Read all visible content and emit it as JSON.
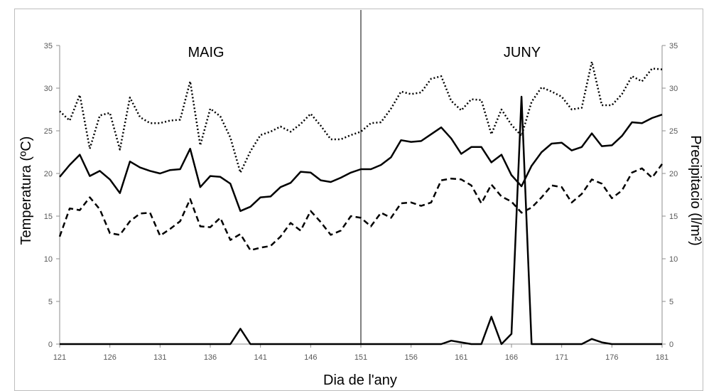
{
  "chart_data": {
    "type": "line",
    "xlabel": "Dia de l'any",
    "ylabel_left": "Temperatura (ºC)",
    "ylabel_right": "Precipitacio (l/m²)",
    "xlim": [
      121,
      181
    ],
    "ylim_left": [
      0,
      35
    ],
    "ylim_right": [
      0,
      35
    ],
    "xticks": [
      "121",
      "126",
      "131",
      "136",
      "141",
      "146",
      "151",
      "156",
      "161",
      "166",
      "171",
      "176",
      "181"
    ],
    "yticks_left": [
      "0",
      "5",
      "10",
      "15",
      "20",
      "25",
      "30",
      "35"
    ],
    "yticks_right": [
      "0",
      "5",
      "10",
      "15",
      "20",
      "25",
      "30",
      "35"
    ],
    "month_labels": [
      "MAIG",
      "JUNY"
    ],
    "divider_x": 151,
    "grid": false,
    "x": [
      121,
      122,
      123,
      124,
      125,
      126,
      127,
      128,
      129,
      130,
      131,
      132,
      133,
      134,
      135,
      136,
      137,
      138,
      139,
      140,
      141,
      142,
      143,
      144,
      145,
      146,
      147,
      148,
      149,
      150,
      151,
      152,
      153,
      154,
      155,
      156,
      157,
      158,
      159,
      160,
      161,
      162,
      163,
      164,
      165,
      166,
      167,
      168,
      169,
      170,
      171,
      172,
      173,
      174,
      175,
      176,
      177,
      178,
      179,
      180,
      181
    ],
    "series": [
      {
        "style": "dotted",
        "color": "#000000",
        "axis": "left",
        "values": [
          27.3,
          26.2,
          29.2,
          22.9,
          26.8,
          27.1,
          22.8,
          28.9,
          26.6,
          25.9,
          25.9,
          26.2,
          26.3,
          30.8,
          23.3,
          27.6,
          26.7,
          24.2,
          20.1,
          22.6,
          24.5,
          24.9,
          25.5,
          24.9,
          25.8,
          27.0,
          25.6,
          24.0,
          24.0,
          24.5,
          24.9,
          25.9,
          26.0,
          27.6,
          29.6,
          29.3,
          29.5,
          31.1,
          31.4,
          28.5,
          27.4,
          28.7,
          28.6,
          24.6,
          27.5,
          25.7,
          24.4,
          28.4,
          30.1,
          29.6,
          29.0,
          27.5,
          27.7,
          33.1,
          28.0,
          28.0,
          29.3,
          31.4,
          30.8,
          32.3,
          32.2
        ]
      },
      {
        "style": "solid",
        "color": "#000000",
        "axis": "left",
        "values": [
          19.6,
          21.0,
          22.2,
          19.7,
          20.3,
          19.3,
          17.7,
          21.4,
          20.7,
          20.3,
          20.0,
          20.4,
          20.5,
          22.9,
          18.4,
          19.7,
          19.6,
          18.8,
          15.6,
          16.1,
          17.2,
          17.3,
          18.4,
          18.9,
          20.2,
          20.1,
          19.2,
          19.0,
          19.5,
          20.1,
          20.5,
          20.5,
          21.0,
          21.9,
          23.9,
          23.7,
          23.8,
          24.6,
          25.4,
          24.1,
          22.3,
          23.1,
          23.1,
          21.3,
          22.2,
          19.8,
          18.5,
          20.9,
          22.5,
          23.5,
          23.6,
          22.7,
          23.1,
          24.7,
          23.2,
          23.3,
          24.4,
          26.0,
          25.9,
          26.5,
          26.9
        ]
      },
      {
        "style": "dashed",
        "color": "#000000",
        "axis": "left",
        "values": [
          12.6,
          15.9,
          15.7,
          17.2,
          15.8,
          13.0,
          12.8,
          14.4,
          15.3,
          15.4,
          12.7,
          13.5,
          14.4,
          17.0,
          13.8,
          13.7,
          14.8,
          12.2,
          12.9,
          11.0,
          11.3,
          11.5,
          12.6,
          14.2,
          13.3,
          15.6,
          14.3,
          12.8,
          13.3,
          15.0,
          14.8,
          13.8,
          15.4,
          14.8,
          16.5,
          16.6,
          16.2,
          16.6,
          19.2,
          19.4,
          19.3,
          18.6,
          16.5,
          18.7,
          17.3,
          16.7,
          15.4,
          16.0,
          17.2,
          18.6,
          18.4,
          16.6,
          17.6,
          19.3,
          18.8,
          17.1,
          18.0,
          20.1,
          20.6,
          19.5,
          21.1
        ]
      },
      {
        "style": "solid",
        "color": "#000000",
        "axis": "right",
        "values": [
          0,
          0,
          0,
          0,
          0,
          0,
          0,
          0,
          0,
          0,
          0,
          0,
          0,
          0,
          0,
          0,
          0,
          0,
          1.8,
          0,
          0,
          0,
          0,
          0,
          0,
          0,
          0,
          0,
          0,
          0,
          0,
          0,
          0,
          0,
          0,
          0,
          0,
          0,
          0,
          0.4,
          0.2,
          0,
          0,
          3.2,
          0,
          1.2,
          29.0,
          0,
          0,
          0,
          0,
          0,
          0,
          0.6,
          0.2,
          0,
          0,
          0,
          0,
          0,
          0
        ]
      }
    ]
  }
}
